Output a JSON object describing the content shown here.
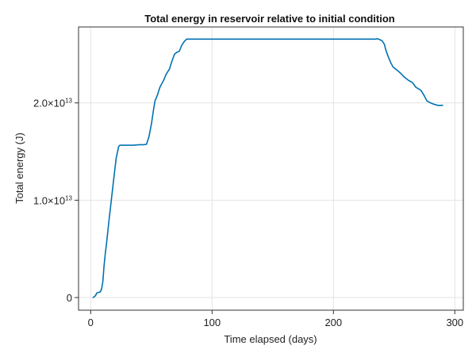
{
  "chart_data": {
    "type": "line",
    "title": "Total energy in reservoir relative to initial condition",
    "xlabel": "Time elapsed (days)",
    "ylabel": "Total energy (J)",
    "xlim": [
      -10,
      307
    ],
    "ylim": [
      -1300000000000.0,
      27800000000000.0
    ],
    "grid": true,
    "legend": "none",
    "x_ticks": [
      {
        "value": 0,
        "label": "0"
      },
      {
        "value": 100,
        "label": "100"
      },
      {
        "value": 200,
        "label": "200"
      },
      {
        "value": 300,
        "label": "300"
      }
    ],
    "y_ticks": [
      {
        "value": 0,
        "mantissa": "0",
        "exp": ""
      },
      {
        "value": 10000000000000.0,
        "mantissa": "1.0×10",
        "exp": "13"
      },
      {
        "value": 20000000000000.0,
        "mantissa": "2.0×10",
        "exp": "13"
      }
    ],
    "series": [
      {
        "color": "#0072B2",
        "x": [
          2,
          4,
          5,
          6,
          8,
          9,
          10,
          11,
          12,
          13,
          15,
          17,
          19,
          21,
          23,
          24,
          25,
          27,
          30,
          35,
          40,
          44,
          46,
          48,
          50,
          52,
          53,
          55,
          57,
          60,
          62,
          65,
          67,
          69,
          71,
          73,
          75,
          77,
          79,
          81,
          100,
          150,
          200,
          235,
          236,
          238,
          240,
          242,
          243,
          245,
          247,
          249,
          252,
          255,
          258,
          262,
          265,
          268,
          272,
          275,
          277,
          280,
          283,
          286,
          290
        ],
        "y": [
          0.0,
          200000000000.0,
          450000000000.0,
          500000000000.0,
          600000000000.0,
          900000000000.0,
          1600000000000.0,
          3200000000000.0,
          4500000000000.0,
          5500000000000.0,
          7800000000000.0,
          10000000000000.0,
          12200000000000.0,
          14300000000000.0,
          15500000000000.0,
          15650000000000.0,
          15650000000000.0,
          15650000000000.0,
          15650000000000.0,
          15650000000000.0,
          15700000000000.0,
          15700000000000.0,
          15750000000000.0,
          16500000000000.0,
          17800000000000.0,
          19500000000000.0,
          20200000000000.0,
          20800000000000.0,
          21600000000000.0,
          22300000000000.0,
          22900000000000.0,
          23500000000000.0,
          24300000000000.0,
          25000000000000.0,
          25200000000000.0,
          25300000000000.0,
          25900000000000.0,
          26300000000000.0,
          26550000000000.0,
          26550000000000.0,
          26550000000000.0,
          26550000000000.0,
          26550000000000.0,
          26550000000000.0,
          26600000000000.0,
          26500000000000.0,
          26400000000000.0,
          26000000000000.0,
          25500000000000.0,
          24800000000000.0,
          24200000000000.0,
          23700000000000.0,
          23400000000000.0,
          23100000000000.0,
          22700000000000.0,
          22300000000000.0,
          22100000000000.0,
          21600000000000.0,
          21300000000000.0,
          20700000000000.0,
          20200000000000.0,
          20000000000000.0,
          19850000000000.0,
          19750000000000.0,
          19750000000000.0
        ]
      }
    ]
  }
}
